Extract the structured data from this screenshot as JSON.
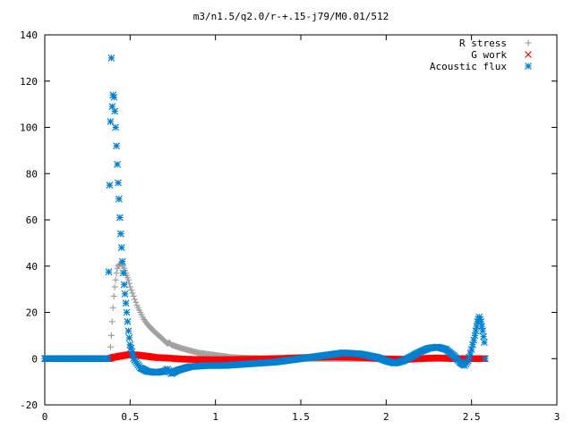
{
  "chart_data": {
    "type": "scatter",
    "title": "m3/n1.5/q2.0/r-+.15-j79/M0.01/512",
    "xlabel": "",
    "ylabel": "",
    "xlim": [
      0,
      3
    ],
    "ylim": [
      -20,
      140
    ],
    "x_ticks": [
      "0",
      "0.5",
      "1",
      "1.5",
      "2",
      "2.5",
      "3"
    ],
    "y_ticks": [
      "-20",
      "0",
      "20",
      "40",
      "60",
      "80",
      "100",
      "120",
      "140"
    ],
    "grid": false,
    "legend_position": "top-right",
    "series": [
      {
        "name": "R stress",
        "marker": "plus",
        "color": "#a0a0a0",
        "points": [
          [
            0.0,
            0
          ],
          [
            0.1,
            0
          ],
          [
            0.2,
            0
          ],
          [
            0.3,
            0
          ],
          [
            0.38,
            0
          ],
          [
            0.39,
            10
          ],
          [
            0.395,
            16
          ],
          [
            0.4,
            22
          ],
          [
            0.405,
            27
          ],
          [
            0.41,
            31
          ],
          [
            0.415,
            34
          ],
          [
            0.42,
            37
          ],
          [
            0.425,
            39
          ],
          [
            0.43,
            40
          ],
          [
            0.44,
            41
          ],
          [
            0.45,
            41
          ],
          [
            0.46,
            40
          ],
          [
            0.47,
            38
          ],
          [
            0.48,
            36
          ],
          [
            0.49,
            34
          ],
          [
            0.5,
            31
          ],
          [
            0.52,
            27
          ],
          [
            0.54,
            23
          ],
          [
            0.56,
            20
          ],
          [
            0.58,
            17
          ],
          [
            0.6,
            15
          ],
          [
            0.63,
            12.5
          ],
          [
            0.66,
            10.5
          ],
          [
            0.69,
            8.5
          ],
          [
            0.71,
            7
          ],
          [
            0.72,
            6.5
          ],
          [
            0.73,
            7
          ],
          [
            0.74,
            6
          ],
          [
            0.76,
            5.5
          ],
          [
            0.8,
            4.5
          ],
          [
            0.85,
            3.5
          ],
          [
            0.9,
            2.5
          ],
          [
            0.95,
            2
          ],
          [
            1.0,
            1.5
          ],
          [
            1.05,
            1
          ],
          [
            1.1,
            0.5
          ],
          [
            1.2,
            0.2
          ],
          [
            1.3,
            0
          ],
          [
            1.5,
            0
          ],
          [
            2.0,
            0
          ],
          [
            2.5,
            0
          ],
          [
            2.58,
            0
          ]
        ]
      },
      {
        "name": "G work",
        "marker": "cross",
        "color": "#ff0000",
        "points": [
          [
            0.0,
            0
          ],
          [
            0.1,
            0
          ],
          [
            0.2,
            0
          ],
          [
            0.3,
            0
          ],
          [
            0.38,
            0
          ],
          [
            0.4,
            0.5
          ],
          [
            0.45,
            1.2
          ],
          [
            0.5,
            1.8
          ],
          [
            0.55,
            1.5
          ],
          [
            0.6,
            1
          ],
          [
            0.65,
            0.5
          ],
          [
            0.7,
            0.3
          ],
          [
            0.75,
            0.1
          ],
          [
            0.8,
            -0.2
          ],
          [
            0.9,
            -0.4
          ],
          [
            1.0,
            -0.5
          ],
          [
            1.1,
            -0.4
          ],
          [
            1.2,
            -0.3
          ],
          [
            1.3,
            -0.1
          ],
          [
            1.4,
            0.1
          ],
          [
            1.5,
            0.4
          ],
          [
            1.6,
            0.6
          ],
          [
            1.7,
            0.7
          ],
          [
            1.8,
            0.6
          ],
          [
            1.9,
            0.3
          ],
          [
            2.0,
            -0.2
          ],
          [
            2.1,
            -0.4
          ],
          [
            2.2,
            0
          ],
          [
            2.3,
            0.3
          ],
          [
            2.4,
            0
          ],
          [
            2.5,
            0
          ],
          [
            2.58,
            0
          ]
        ]
      },
      {
        "name": "Acoustic flux",
        "marker": "star",
        "color": "#0080d0",
        "points": [
          [
            0.0,
            0
          ],
          [
            0.1,
            0
          ],
          [
            0.2,
            0
          ],
          [
            0.3,
            0
          ],
          [
            0.37,
            0
          ],
          [
            0.38,
            75
          ],
          [
            0.39,
            130
          ],
          [
            0.395,
            109
          ],
          [
            0.4,
            114
          ],
          [
            0.405,
            113
          ],
          [
            0.41,
            107
          ],
          [
            0.415,
            100
          ],
          [
            0.42,
            92
          ],
          [
            0.425,
            84
          ],
          [
            0.43,
            76
          ],
          [
            0.435,
            69
          ],
          [
            0.44,
            61
          ],
          [
            0.445,
            54
          ],
          [
            0.45,
            48
          ],
          [
            0.455,
            42
          ],
          [
            0.46,
            37
          ],
          [
            0.465,
            32
          ],
          [
            0.47,
            28
          ],
          [
            0.475,
            24
          ],
          [
            0.48,
            20
          ],
          [
            0.485,
            16
          ],
          [
            0.49,
            12
          ],
          [
            0.495,
            9
          ],
          [
            0.5,
            6
          ],
          [
            0.51,
            3
          ],
          [
            0.52,
            0
          ],
          [
            0.54,
            -2
          ],
          [
            0.56,
            -4
          ],
          [
            0.6,
            -5.5
          ],
          [
            0.65,
            -6
          ],
          [
            0.7,
            -5.5
          ],
          [
            0.72,
            -4.5
          ],
          [
            0.74,
            -6.5
          ],
          [
            0.78,
            -5
          ],
          [
            0.85,
            -3.5
          ],
          [
            0.95,
            -3
          ],
          [
            1.05,
            -3
          ],
          [
            1.15,
            -2.5
          ],
          [
            1.25,
            -2
          ],
          [
            1.35,
            -1.5
          ],
          [
            1.45,
            -0.5
          ],
          [
            1.55,
            0.5
          ],
          [
            1.65,
            1.5
          ],
          [
            1.75,
            2.5
          ],
          [
            1.85,
            2
          ],
          [
            1.95,
            0.5
          ],
          [
            2.0,
            -1
          ],
          [
            2.05,
            -2
          ],
          [
            2.1,
            -1
          ],
          [
            2.15,
            1
          ],
          [
            2.2,
            3
          ],
          [
            2.25,
            4.5
          ],
          [
            2.3,
            5
          ],
          [
            2.35,
            4
          ],
          [
            2.4,
            1
          ],
          [
            2.43,
            -1.5
          ],
          [
            2.46,
            -3
          ],
          [
            2.48,
            -1
          ],
          [
            2.5,
            4
          ],
          [
            2.52,
            10
          ],
          [
            2.535,
            16
          ],
          [
            2.545,
            18
          ],
          [
            2.555,
            16
          ],
          [
            2.565,
            12
          ],
          [
            2.575,
            7
          ],
          [
            2.58,
            0
          ]
        ]
      }
    ]
  }
}
